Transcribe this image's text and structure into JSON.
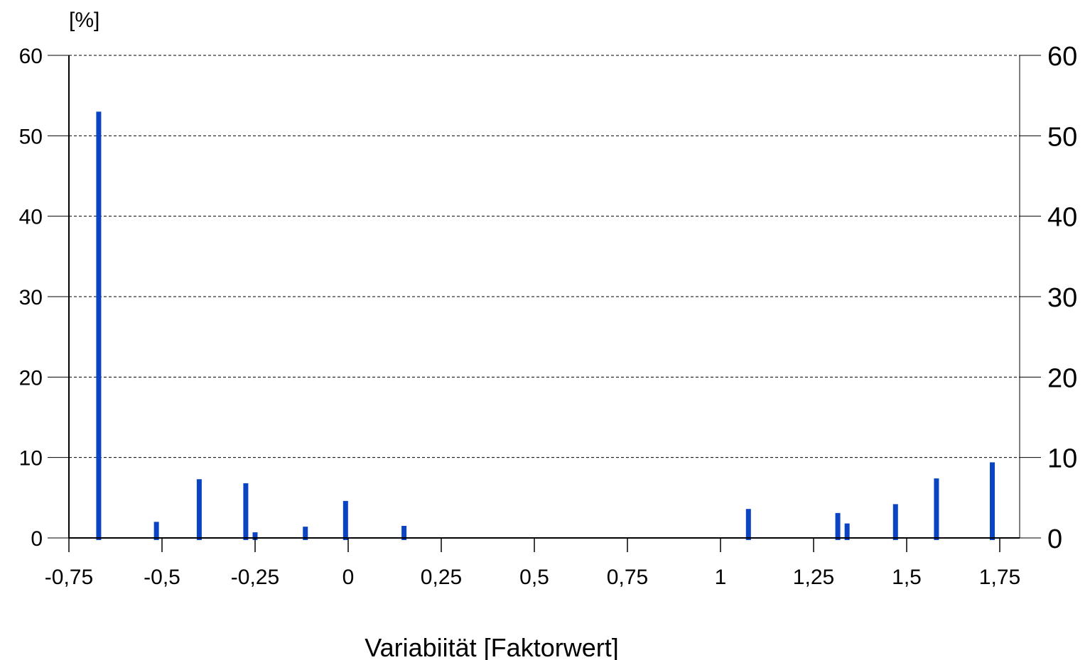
{
  "chart_data": {
    "type": "bar",
    "ylabel_unit": "[%]",
    "xlabel": "Variabiität [Faktorwert]",
    "ylim": [
      0,
      60
    ],
    "xlim": [
      -0.75,
      1.8
    ],
    "y_ticks": [
      0,
      10,
      20,
      30,
      40,
      50,
      60
    ],
    "x_ticks": [
      {
        "value": -0.75,
        "label": "-0,75"
      },
      {
        "value": -0.5,
        "label": "-0,5"
      },
      {
        "value": -0.25,
        "label": "-0,25"
      },
      {
        "value": 0,
        "label": "0"
      },
      {
        "value": 0.25,
        "label": "0,25"
      },
      {
        "value": 0.5,
        "label": "0,5"
      },
      {
        "value": 0.75,
        "label": "0,75"
      },
      {
        "value": 1,
        "label": "1"
      },
      {
        "value": 1.25,
        "label": "1,25"
      },
      {
        "value": 1.5,
        "label": "1,5"
      },
      {
        "value": 1.75,
        "label": "1,75"
      }
    ],
    "grid": "horizontal dashed",
    "secondary_y_axis": "right, same scale",
    "bar_color": "#0a44c2",
    "series": [
      {
        "points": [
          {
            "x": -0.67,
            "y": 53
          },
          {
            "x": -0.515,
            "y": 2
          },
          {
            "x": -0.4,
            "y": 7.3
          },
          {
            "x": -0.275,
            "y": 6.8
          },
          {
            "x": -0.25,
            "y": 0.7
          },
          {
            "x": -0.115,
            "y": 1.4
          },
          {
            "x": -0.007,
            "y": 4.6
          },
          {
            "x": 0.15,
            "y": 1.5
          },
          {
            "x": 1.075,
            "y": 3.6
          },
          {
            "x": 1.315,
            "y": 3.1
          },
          {
            "x": 1.34,
            "y": 1.8
          },
          {
            "x": 1.47,
            "y": 4.2
          },
          {
            "x": 1.58,
            "y": 7.4
          },
          {
            "x": 1.73,
            "y": 9.4
          }
        ]
      }
    ]
  }
}
